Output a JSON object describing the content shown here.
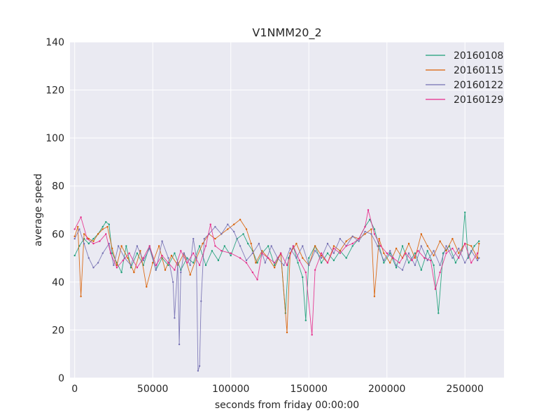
{
  "chart_data": {
    "type": "line",
    "title": "V1NMM20_2",
    "xlabel": "seconds from friday 00:00:00",
    "ylabel": "average speed",
    "xlim": [
      -3000,
      275000
    ],
    "ylim": [
      0,
      140
    ],
    "xticks": [
      0,
      50000,
      100000,
      150000,
      200000,
      250000
    ],
    "xtick_labels": [
      "0",
      "50000",
      "100000",
      "150000",
      "200000",
      "250000"
    ],
    "yticks": [
      0,
      20,
      40,
      60,
      80,
      100,
      120,
      140
    ],
    "ytick_labels": [
      "0",
      "20",
      "40",
      "60",
      "80",
      "100",
      "120",
      "140"
    ],
    "grid": true,
    "legend_position": "top-right",
    "series": [
      {
        "name": "20160108",
        "color": "#1b9e77",
        "points": [
          [
            0,
            51
          ],
          [
            3000,
            55
          ],
          [
            6000,
            58
          ],
          [
            9000,
            56
          ],
          [
            12000,
            58
          ],
          [
            15000,
            60
          ],
          [
            18000,
            63
          ],
          [
            20000,
            65
          ],
          [
            22000,
            64
          ],
          [
            24000,
            52
          ],
          [
            27000,
            48
          ],
          [
            30000,
            44
          ],
          [
            33000,
            55
          ],
          [
            36000,
            46
          ],
          [
            40000,
            52
          ],
          [
            44000,
            47
          ],
          [
            48000,
            55
          ],
          [
            52000,
            45
          ],
          [
            56000,
            50
          ],
          [
            60000,
            47
          ],
          [
            64000,
            52
          ],
          [
            68000,
            45
          ],
          [
            72000,
            50
          ],
          [
            76000,
            48
          ],
          [
            80000,
            55
          ],
          [
            84000,
            47
          ],
          [
            88000,
            53
          ],
          [
            92000,
            49
          ],
          [
            96000,
            55
          ],
          [
            100000,
            51
          ],
          [
            104000,
            58
          ],
          [
            108000,
            60
          ],
          [
            111000,
            56
          ],
          [
            114000,
            53
          ],
          [
            117000,
            48
          ],
          [
            120000,
            52
          ],
          [
            124000,
            55
          ],
          [
            128000,
            47
          ],
          [
            132000,
            52
          ],
          [
            135000,
            27
          ],
          [
            137000,
            50
          ],
          [
            140000,
            55
          ],
          [
            143000,
            48
          ],
          [
            146000,
            42
          ],
          [
            148000,
            24
          ],
          [
            150000,
            50
          ],
          [
            154000,
            55
          ],
          [
            158000,
            48
          ],
          [
            162000,
            52
          ],
          [
            166000,
            49
          ],
          [
            170000,
            53
          ],
          [
            174000,
            50
          ],
          [
            178000,
            55
          ],
          [
            182000,
            58
          ],
          [
            186000,
            63
          ],
          [
            189000,
            66
          ],
          [
            192000,
            62
          ],
          [
            195000,
            55
          ],
          [
            198000,
            48
          ],
          [
            202000,
            52
          ],
          [
            206000,
            46
          ],
          [
            210000,
            55
          ],
          [
            214000,
            48
          ],
          [
            218000,
            52
          ],
          [
            222000,
            45
          ],
          [
            226000,
            53
          ],
          [
            230000,
            47
          ],
          [
            233000,
            27
          ],
          [
            236000,
            52
          ],
          [
            240000,
            55
          ],
          [
            244000,
            48
          ],
          [
            248000,
            53
          ],
          [
            250000,
            69
          ],
          [
            252000,
            50
          ],
          [
            256000,
            55
          ],
          [
            259000,
            57
          ]
        ]
      },
      {
        "name": "20160115",
        "color": "#d95f02",
        "points": [
          [
            0,
            59
          ],
          [
            2000,
            63
          ],
          [
            4000,
            34
          ],
          [
            6000,
            60
          ],
          [
            9000,
            58
          ],
          [
            12000,
            57
          ],
          [
            15000,
            60
          ],
          [
            18000,
            62
          ],
          [
            21000,
            63
          ],
          [
            24000,
            54
          ],
          [
            27000,
            47
          ],
          [
            30000,
            55
          ],
          [
            34000,
            50
          ],
          [
            38000,
            44
          ],
          [
            42000,
            53
          ],
          [
            46000,
            38
          ],
          [
            50000,
            48
          ],
          [
            54000,
            55
          ],
          [
            58000,
            45
          ],
          [
            62000,
            51
          ],
          [
            66000,
            47
          ],
          [
            70000,
            52
          ],
          [
            74000,
            43
          ],
          [
            78000,
            50
          ],
          [
            82000,
            56
          ],
          [
            86000,
            60
          ],
          [
            90000,
            58
          ],
          [
            94000,
            60
          ],
          [
            98000,
            62
          ],
          [
            102000,
            64
          ],
          [
            106000,
            66
          ],
          [
            110000,
            62
          ],
          [
            113000,
            56
          ],
          [
            116000,
            48
          ],
          [
            120000,
            53
          ],
          [
            124000,
            50
          ],
          [
            128000,
            46
          ],
          [
            132000,
            52
          ],
          [
            136000,
            19
          ],
          [
            138000,
            52
          ],
          [
            142000,
            56
          ],
          [
            146000,
            50
          ],
          [
            150000,
            47
          ],
          [
            154000,
            55
          ],
          [
            158000,
            51
          ],
          [
            162000,
            48
          ],
          [
            166000,
            55
          ],
          [
            170000,
            53
          ],
          [
            174000,
            57
          ],
          [
            178000,
            59
          ],
          [
            182000,
            58
          ],
          [
            186000,
            60
          ],
          [
            190000,
            62
          ],
          [
            192000,
            34
          ],
          [
            195000,
            58
          ],
          [
            198000,
            52
          ],
          [
            202000,
            48
          ],
          [
            206000,
            54
          ],
          [
            210000,
            50
          ],
          [
            214000,
            56
          ],
          [
            218000,
            50
          ],
          [
            222000,
            60
          ],
          [
            226000,
            55
          ],
          [
            230000,
            51
          ],
          [
            234000,
            57
          ],
          [
            238000,
            53
          ],
          [
            242000,
            58
          ],
          [
            246000,
            52
          ],
          [
            250000,
            56
          ],
          [
            254000,
            55
          ],
          [
            258000,
            50
          ],
          [
            259000,
            56
          ]
        ]
      },
      {
        "name": "20160122",
        "color": "#7570b3",
        "points": [
          [
            0,
            58
          ],
          [
            3000,
            62
          ],
          [
            6000,
            56
          ],
          [
            9000,
            50
          ],
          [
            12000,
            46
          ],
          [
            15000,
            48
          ],
          [
            18000,
            52
          ],
          [
            22000,
            56
          ],
          [
            25000,
            47
          ],
          [
            28000,
            55
          ],
          [
            32000,
            50
          ],
          [
            36000,
            47
          ],
          [
            40000,
            55
          ],
          [
            44000,
            49
          ],
          [
            48000,
            54
          ],
          [
            52000,
            45
          ],
          [
            56000,
            57
          ],
          [
            60000,
            50
          ],
          [
            63000,
            40
          ],
          [
            64000,
            25
          ],
          [
            66000,
            48
          ],
          [
            67000,
            14
          ],
          [
            68000,
            44
          ],
          [
            70000,
            52
          ],
          [
            74000,
            47
          ],
          [
            76000,
            58
          ],
          [
            78000,
            50
          ],
          [
            79000,
            3
          ],
          [
            80000,
            5
          ],
          [
            81000,
            32
          ],
          [
            83000,
            58
          ],
          [
            86000,
            60
          ],
          [
            90000,
            63
          ],
          [
            94000,
            60
          ],
          [
            98000,
            64
          ],
          [
            102000,
            61
          ],
          [
            106000,
            55
          ],
          [
            110000,
            49
          ],
          [
            114000,
            52
          ],
          [
            118000,
            56
          ],
          [
            122000,
            48
          ],
          [
            126000,
            55
          ],
          [
            130000,
            50
          ],
          [
            134000,
            47
          ],
          [
            138000,
            54
          ],
          [
            142000,
            50
          ],
          [
            146000,
            55
          ],
          [
            150000,
            47
          ],
          [
            154000,
            53
          ],
          [
            158000,
            50
          ],
          [
            162000,
            56
          ],
          [
            166000,
            52
          ],
          [
            170000,
            58
          ],
          [
            174000,
            55
          ],
          [
            178000,
            59
          ],
          [
            182000,
            57
          ],
          [
            186000,
            61
          ],
          [
            190000,
            60
          ],
          [
            194000,
            55
          ],
          [
            198000,
            49
          ],
          [
            202000,
            53
          ],
          [
            206000,
            47
          ],
          [
            210000,
            45
          ],
          [
            214000,
            52
          ],
          [
            218000,
            47
          ],
          [
            222000,
            55
          ],
          [
            226000,
            49
          ],
          [
            230000,
            53
          ],
          [
            234000,
            47
          ],
          [
            238000,
            55
          ],
          [
            242000,
            50
          ],
          [
            246000,
            54
          ],
          [
            250000,
            48
          ],
          [
            254000,
            53
          ],
          [
            258000,
            49
          ],
          [
            259000,
            50
          ]
        ]
      },
      {
        "name": "20160129",
        "color": "#e7298a",
        "points": [
          [
            0,
            62
          ],
          [
            4000,
            67
          ],
          [
            8000,
            58
          ],
          [
            12000,
            56
          ],
          [
            16000,
            57
          ],
          [
            20000,
            60
          ],
          [
            23000,
            52
          ],
          [
            27000,
            46
          ],
          [
            31000,
            49
          ],
          [
            35000,
            52
          ],
          [
            40000,
            46
          ],
          [
            44000,
            50
          ],
          [
            48000,
            55
          ],
          [
            52000,
            47
          ],
          [
            56000,
            51
          ],
          [
            60000,
            48
          ],
          [
            64000,
            45
          ],
          [
            68000,
            53
          ],
          [
            72000,
            48
          ],
          [
            76000,
            52
          ],
          [
            80000,
            47
          ],
          [
            84000,
            55
          ],
          [
            87000,
            64
          ],
          [
            90000,
            55
          ],
          [
            94000,
            53
          ],
          [
            100000,
            52
          ],
          [
            106000,
            50
          ],
          [
            110000,
            48
          ],
          [
            114000,
            44
          ],
          [
            117000,
            41
          ],
          [
            120000,
            52
          ],
          [
            124000,
            50
          ],
          [
            128000,
            48
          ],
          [
            132000,
            52
          ],
          [
            136000,
            47
          ],
          [
            140000,
            55
          ],
          [
            144000,
            49
          ],
          [
            148000,
            44
          ],
          [
            152000,
            18
          ],
          [
            154000,
            45
          ],
          [
            158000,
            52
          ],
          [
            162000,
            48
          ],
          [
            166000,
            54
          ],
          [
            170000,
            52
          ],
          [
            174000,
            55
          ],
          [
            178000,
            56
          ],
          [
            182000,
            58
          ],
          [
            186000,
            63
          ],
          [
            188000,
            70
          ],
          [
            192000,
            60
          ],
          [
            196000,
            55
          ],
          [
            200000,
            52
          ],
          [
            204000,
            50
          ],
          [
            208000,
            48
          ],
          [
            212000,
            52
          ],
          [
            216000,
            49
          ],
          [
            220000,
            53
          ],
          [
            224000,
            50
          ],
          [
            228000,
            49
          ],
          [
            231000,
            37
          ],
          [
            234000,
            44
          ],
          [
            238000,
            52
          ],
          [
            242000,
            54
          ],
          [
            246000,
            50
          ],
          [
            250000,
            56
          ],
          [
            254000,
            48
          ],
          [
            258000,
            52
          ]
        ]
      }
    ]
  }
}
